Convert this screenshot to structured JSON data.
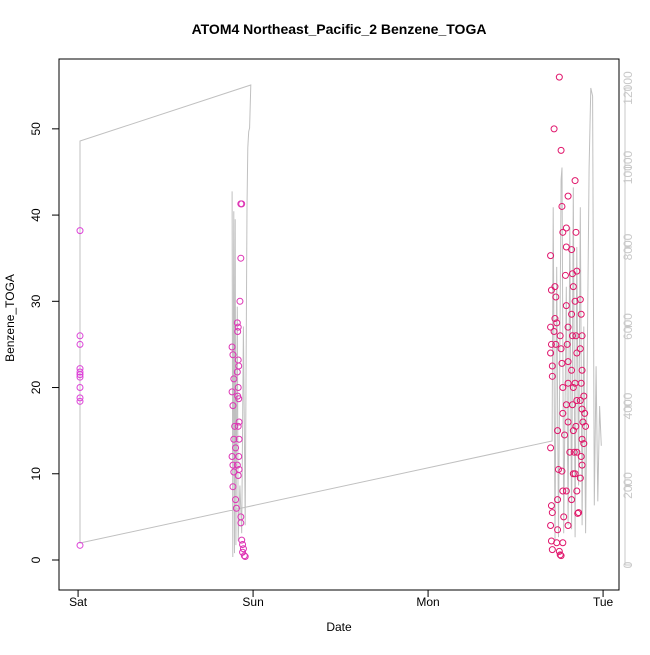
{
  "chart_data": {
    "type": "scatter",
    "title": "ATOM4 Northeast_Pacific_2 Benzene_TOGA",
    "xlabel": "Date",
    "ylabel": "Benzene_TOGA",
    "xlim": [
      -0.109,
      3.091
    ],
    "xticks": [
      {
        "value": 0,
        "label": "Sat"
      },
      {
        "value": 1,
        "label": "Sun"
      },
      {
        "value": 2,
        "label": "Mon"
      },
      {
        "value": 3,
        "label": "Tue"
      }
    ],
    "ylim": [
      -3.48,
      58.1
    ],
    "yticks": [
      0,
      10,
      20,
      30,
      40,
      50
    ],
    "y2lim": [
      -629,
      12730
    ],
    "y2ticks": [
      0,
      2000,
      4000,
      6000,
      8000,
      10000,
      12000
    ],
    "y2_color": "#c8c8c8",
    "series": [
      {
        "type": "scatter",
        "color_scale": [
          "#dd44dd",
          "#e0105e"
        ],
        "x": [
          0.011,
          0.011,
          0.011,
          0.011,
          0.011,
          0.011,
          0.011,
          0.011,
          0.011,
          0.011,
          0.011,
          0.88,
          0.885,
          0.89,
          0.88,
          0.885,
          0.89,
          0.88,
          0.885,
          0.89,
          0.885,
          0.9,
          0.905,
          0.895,
          0.9,
          0.91,
          0.915,
          0.912,
          0.915,
          0.918,
          0.91,
          0.915,
          0.912,
          0.918,
          0.92,
          0.915,
          0.92,
          0.918,
          0.91,
          0.92,
          0.915,
          0.93,
          0.935,
          0.93,
          0.925,
          0.93,
          0.93,
          0.935,
          0.94,
          0.945,
          0.95,
          0.955,
          0.94,
          2.7,
          2.705,
          2.7,
          2.705,
          2.7,
          2.71,
          2.71,
          2.7,
          2.705,
          2.71,
          2.7,
          2.705,
          2.71,
          2.72,
          2.725,
          2.73,
          2.725,
          2.72,
          2.735,
          2.73,
          2.74,
          2.745,
          2.74,
          2.735,
          2.75,
          2.755,
          2.76,
          2.74,
          2.75,
          2.76,
          2.765,
          2.77,
          2.755,
          2.76,
          2.765,
          2.77,
          2.77,
          2.78,
          2.765,
          2.77,
          2.775,
          2.77,
          2.79,
          2.8,
          2.79,
          2.785,
          2.79,
          2.8,
          2.795,
          2.8,
          2.8,
          2.79,
          2.8,
          2.81,
          2.79,
          2.8,
          2.82,
          2.825,
          2.83,
          2.82,
          2.825,
          2.82,
          2.83,
          2.825,
          2.83,
          2.835,
          2.83,
          2.82,
          2.84,
          2.845,
          2.85,
          2.84,
          2.845,
          2.85,
          2.84,
          2.85,
          2.845,
          2.85,
          2.84,
          2.85,
          2.86,
          2.855,
          2.87,
          2.875,
          2.88,
          2.87,
          2.88,
          2.875,
          2.87,
          2.88,
          2.885,
          2.88,
          2.875,
          2.88,
          2.87,
          2.89,
          2.895,
          2.9,
          2.89
        ],
        "values": [
          38.2,
          26,
          25,
          22.2,
          21.8,
          21.5,
          21.2,
          20,
          18.8,
          18.4,
          1.7,
          24.7,
          23.8,
          21,
          19.5,
          17.9,
          14,
          12,
          11,
          10.2,
          8.5,
          7,
          6,
          15.5,
          13,
          27.5,
          27,
          26.5,
          23.2,
          22.5,
          21.8,
          20,
          19,
          18.7,
          16,
          15.5,
          14,
          12,
          11,
          10.5,
          9.8,
          41.3,
          41.3,
          35,
          30,
          5,
          4.3,
          2.3,
          1.8,
          1.3,
          0.5,
          0.4,
          0.9,
          35.3,
          31.3,
          27,
          25,
          24,
          22.5,
          21.3,
          13,
          6.3,
          5.5,
          4,
          2.2,
          1.2,
          50,
          31.7,
          30.5,
          28,
          26.5,
          27.5,
          25,
          15,
          10.5,
          3.5,
          2,
          1,
          0.6,
          0.5,
          7,
          56,
          47.5,
          41,
          38,
          26,
          24.5,
          22.8,
          20,
          17,
          14.5,
          10.3,
          8,
          5,
          2,
          36.3,
          42.2,
          38.5,
          33,
          29.5,
          27,
          25,
          23,
          20.5,
          18,
          16,
          12.5,
          8,
          4,
          36,
          33.2,
          31.7,
          28.5,
          26,
          22,
          20,
          18,
          15,
          12.5,
          10,
          7,
          44,
          38,
          33.5,
          30,
          26,
          24,
          20.5,
          18.5,
          15.5,
          12.5,
          10,
          8,
          5.5,
          5.4,
          30.2,
          28.5,
          26,
          24.5,
          22,
          20.5,
          18.5,
          17.5,
          16,
          14,
          12,
          11,
          9.5,
          19,
          17,
          15.5,
          13.5
        ]
      },
      {
        "type": "line",
        "axis": "y2",
        "color": "#c0c0c0",
        "x": [
          0.88,
          0.884,
          0.89,
          0.894,
          0.898,
          0.902,
          0.91,
          0.915,
          0.925,
          0.935,
          0.945,
          0.955,
          0.965,
          0.97,
          0.975,
          0.98,
          0.987,
          0.011,
          0.011,
          2.709,
          2.715,
          2.725,
          2.735,
          2.745,
          2.76,
          2.765,
          2.775,
          2.79,
          2.8,
          2.81,
          2.82,
          2.83,
          2.84,
          2.85,
          2.86,
          2.87,
          2.88,
          2.89,
          2.9,
          2.92,
          2.93,
          2.94,
          2.95,
          2.96,
          2.97,
          2.98,
          2.99
        ],
        "values": [
          9400,
          200,
          8900,
          300,
          8700,
          500,
          6500,
          600,
          2000,
          800,
          6000,
          1000,
          9000,
          10500,
          10900,
          11000,
          12075,
          10667,
          553,
          3120,
          9000,
          600,
          7500,
          700,
          9700,
          10000,
          800,
          7000,
          1000,
          8500,
          900,
          9500,
          700,
          8000,
          2000,
          9000,
          1000,
          6000,
          800,
          10000,
          12000,
          11800,
          1500,
          5000,
          1600,
          4000,
          3000
        ]
      }
    ]
  }
}
